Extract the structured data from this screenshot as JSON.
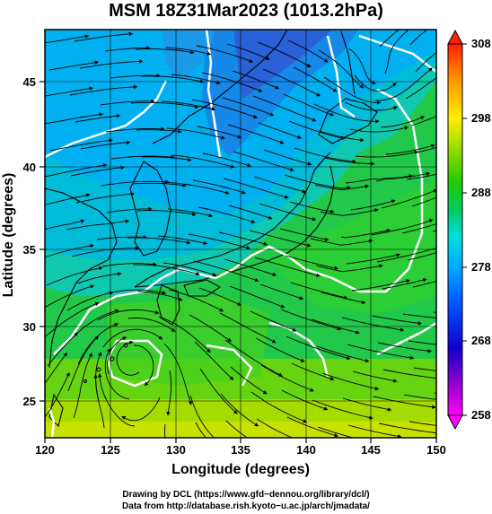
{
  "title": "MSM 18Z31Mar2023 (1013.2hPa)",
  "map": {
    "lon_range": [
      120,
      150
    ],
    "lat_range": [
      22.8,
      47.8
    ],
    "xlabel": "Longitude (degrees)",
    "ylabel": "Latitude  (degrees)",
    "x_ticks": [
      "120",
      "125",
      "130",
      "135",
      "140",
      "145",
      "150"
    ],
    "y_ticks": [
      "25",
      "30",
      "35",
      "40",
      "45"
    ],
    "field": "temperature",
    "overlay": "streamlines",
    "contour_color": "#ffffff"
  },
  "colorbar": {
    "min": 258,
    "max": 308,
    "labels": [
      "308",
      "298",
      "288",
      "278",
      "268",
      "258"
    ],
    "colors": [
      "#ff00ff",
      "#3300cc",
      "#0044ff",
      "#00aaff",
      "#00dddd",
      "#00cc55",
      "#22dd00",
      "#99dd00",
      "#ffee00",
      "#ff9900",
      "#ff2200"
    ]
  },
  "credits": {
    "line1": "Drawing by DCL (https://www.gfd−dennou.org/library/dcl/)",
    "line2": "Data from http://database.rish.kyoto−u.ac.jp/arch/jmadata/"
  }
}
